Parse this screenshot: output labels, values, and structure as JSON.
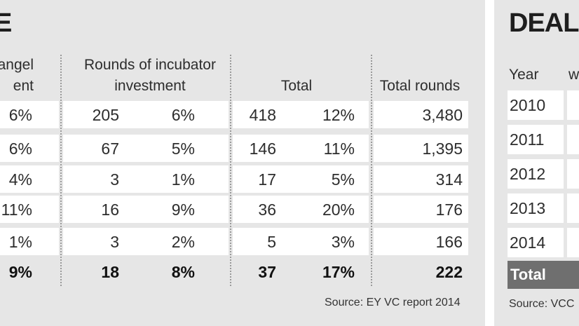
{
  "left_title": "E",
  "headers": {
    "angel_line1": "angel",
    "angel_line2": "ent",
    "incubator_line1": "Rounds of incubator",
    "incubator_line2": "investment",
    "total": "Total",
    "total_rounds": "Total rounds"
  },
  "rows": [
    {
      "angel_pct": "6%",
      "inc_count": "205",
      "inc_pct": "6%",
      "tot_count": "418",
      "tot_pct": "12%",
      "rounds": "3,480"
    },
    {
      "angel_pct": "6%",
      "inc_count": "67",
      "inc_pct": "5%",
      "tot_count": "146",
      "tot_pct": "11%",
      "rounds": "1,395"
    },
    {
      "angel_pct": "4%",
      "inc_count": "3",
      "inc_pct": "1%",
      "tot_count": "17",
      "tot_pct": "5%",
      "rounds": "314"
    },
    {
      "angel_pct": "11%",
      "inc_count": "16",
      "inc_pct": "9%",
      "tot_count": "36",
      "tot_pct": "20%",
      "rounds": "176"
    },
    {
      "angel_pct": "1%",
      "inc_count": "3",
      "inc_pct": "2%",
      "tot_count": "5",
      "tot_pct": "3%",
      "rounds": "166"
    },
    {
      "angel_pct": "9%",
      "inc_count": "18",
      "inc_pct": "8%",
      "tot_count": "37",
      "tot_pct": "17%",
      "rounds": "222"
    }
  ],
  "left_source": "Source: EY VC report 2014",
  "right_title": "DEAL S",
  "right_headers": {
    "year": "Year",
    "second": "w"
  },
  "years": [
    "2010",
    "2011",
    "2012",
    "2013",
    "2014"
  ],
  "right_total": "Total",
  "right_source": "Source: VCC"
}
